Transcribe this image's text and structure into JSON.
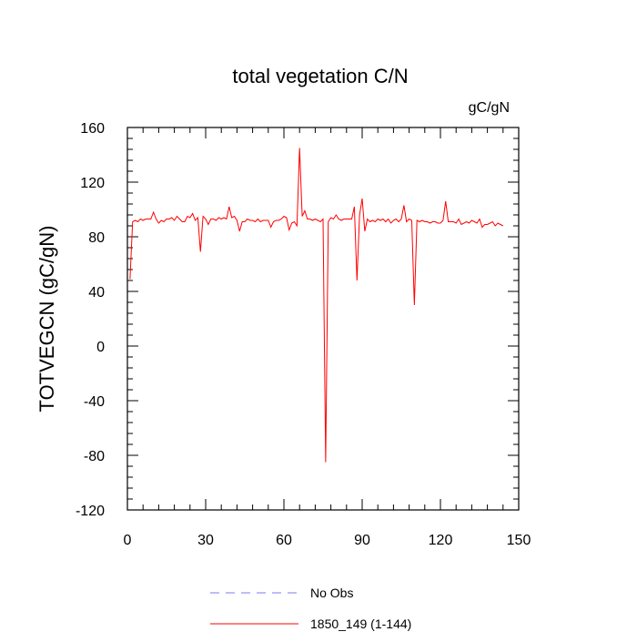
{
  "chart_data": {
    "type": "line",
    "title": "total vegetation C/N",
    "units_label": "gC/gN",
    "ylabel": "TOTVEGCN  (gC/gN)",
    "xlabel": "",
    "xlim": [
      0,
      150
    ],
    "ylim": [
      -120,
      160
    ],
    "x_ticks": [
      0,
      30,
      60,
      90,
      120,
      150
    ],
    "y_ticks": [
      -120,
      -80,
      -40,
      0,
      40,
      80,
      120,
      160
    ],
    "x_tick_labels": [
      "0",
      "30",
      "60",
      "90",
      "120",
      "150"
    ],
    "y_tick_labels": [
      "-120",
      "-80",
      "-40",
      "0",
      "40",
      "80",
      "120",
      "160"
    ],
    "grid": false,
    "legend_position": "bottom-center",
    "legend": [
      {
        "label": "No Obs",
        "color": "#7b7bf0",
        "dash": true
      },
      {
        "label": "1850_149 (1-144)",
        "color": "#ff0000",
        "dash": false
      }
    ],
    "series": [
      {
        "name": "1850_149 (1-144)",
        "color": "#ff0000",
        "x": [
          1,
          2,
          3,
          4,
          5,
          6,
          7,
          8,
          9,
          10,
          11,
          12,
          13,
          14,
          15,
          16,
          17,
          18,
          19,
          20,
          21,
          22,
          23,
          24,
          25,
          26,
          27,
          28,
          29,
          30,
          31,
          32,
          33,
          34,
          35,
          36,
          37,
          38,
          39,
          40,
          41,
          42,
          43,
          44,
          45,
          46,
          47,
          48,
          49,
          50,
          51,
          52,
          53,
          54,
          55,
          56,
          57,
          58,
          59,
          60,
          61,
          62,
          63,
          64,
          65,
          66,
          67,
          68,
          69,
          70,
          71,
          72,
          73,
          74,
          75,
          76,
          77,
          78,
          79,
          80,
          81,
          82,
          83,
          84,
          85,
          86,
          87,
          88,
          89,
          90,
          91,
          92,
          93,
          94,
          95,
          96,
          97,
          98,
          99,
          100,
          101,
          102,
          103,
          104,
          105,
          106,
          107,
          108,
          109,
          110,
          111,
          112,
          113,
          114,
          115,
          116,
          117,
          118,
          119,
          120,
          121,
          122,
          123,
          124,
          125,
          126,
          127,
          128,
          129,
          130,
          131,
          132,
          133,
          134,
          135,
          136,
          137,
          138,
          139,
          140,
          141,
          142,
          143,
          144
        ],
        "values": [
          49,
          91,
          92,
          91,
          93,
          92,
          93,
          93,
          93,
          98,
          93,
          90,
          92,
          91,
          93,
          93,
          94,
          92,
          95,
          93,
          91,
          91,
          95,
          94,
          97,
          92,
          94,
          69,
          95,
          93,
          89,
          93,
          93,
          92,
          94,
          93,
          94,
          93,
          102,
          94,
          95,
          92,
          84,
          91,
          91,
          93,
          92,
          92,
          91,
          93,
          91,
          92,
          92,
          92,
          87,
          91,
          92,
          92,
          93,
          95,
          94,
          85,
          90,
          91,
          88,
          145,
          95,
          99,
          93,
          93,
          92,
          93,
          92,
          91,
          93,
          -85,
          91,
          94,
          93,
          96,
          93,
          92,
          93,
          93,
          93,
          93,
          102,
          48,
          96,
          108,
          84,
          93,
          91,
          92,
          91,
          93,
          92,
          93,
          91,
          93,
          90,
          92,
          93,
          91,
          93,
          103,
          91,
          93,
          92,
          30,
          92,
          91,
          92,
          91,
          91,
          90,
          91,
          91,
          90,
          90,
          92,
          106,
          91,
          91,
          91,
          90,
          93,
          89,
          90,
          91,
          90,
          92,
          91,
          90,
          93,
          87,
          89,
          89,
          90,
          91,
          88,
          90,
          89,
          88
        ]
      },
      {
        "name": "No Obs",
        "color": "#7b7bf0",
        "values": []
      }
    ]
  }
}
